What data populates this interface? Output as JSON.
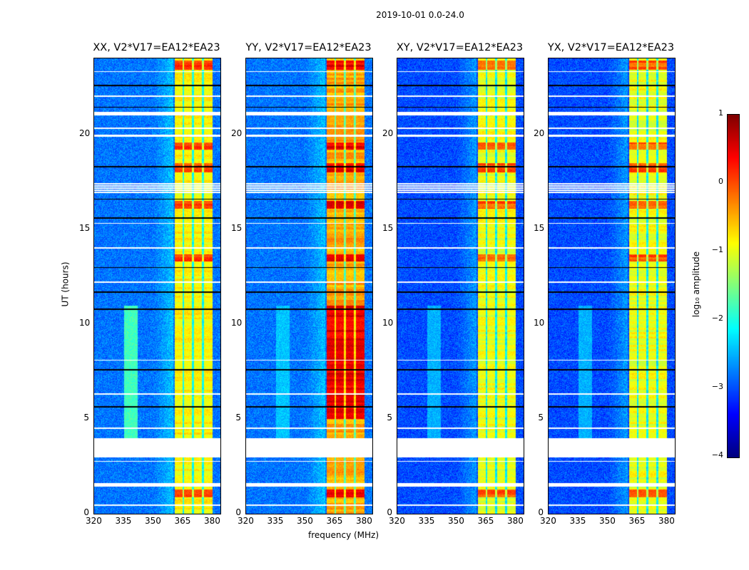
{
  "figure_title": "2019-10-01 0.0-24.0",
  "chart_data": {
    "type": "heatmap",
    "title": "2019-10-01 0.0-24.0",
    "xlabel": "frequency (MHz)",
    "ylabel": "UT (hours)",
    "xlim": [
      320,
      384
    ],
    "ylim": [
      0,
      24
    ],
    "xticks": [
      "320",
      "335",
      "350",
      "365",
      "380"
    ],
    "yticks": [
      "0",
      "5",
      "10",
      "15",
      "20"
    ],
    "panels": [
      {
        "title": "XX, V2*V17=EA12*EA23",
        "background_log_amp": -2.8,
        "band_log_amp": -1.0,
        "bump_log_amp": -2.0
      },
      {
        "title": "YY, V2*V17=EA12*EA23",
        "background_log_amp": -2.8,
        "band_log_amp": -0.6,
        "bump_log_amp": -2.6
      },
      {
        "title": "XY, V2*V17=EA12*EA23",
        "background_log_amp": -3.0,
        "band_log_amp": -1.1,
        "bump_log_amp": -2.7
      },
      {
        "title": "YX, V2*V17=EA12*EA23",
        "background_log_amp": -3.0,
        "band_log_amp": -1.1,
        "bump_log_amp": -2.7
      }
    ],
    "rfi_band_mhz": [
      360.5,
      380
    ],
    "rfi_gaps_mhz": [
      365,
      370,
      375
    ],
    "flagged_hours": [
      [
        0.45,
        0.52
      ],
      [
        1.45,
        1.62
      ],
      [
        2.75,
        2.8
      ],
      [
        3.0,
        4.0
      ],
      [
        4.5,
        4.55
      ],
      [
        6.3,
        6.36
      ],
      [
        8.1,
        8.15
      ],
      [
        12.2,
        12.26
      ],
      [
        14.0,
        14.05
      ],
      [
        15.3,
        15.36
      ],
      [
        16.9,
        17.5
      ],
      [
        19.9,
        20.0
      ],
      [
        20.3,
        20.36
      ],
      [
        21.0,
        21.2
      ],
      [
        22.0,
        22.05
      ],
      [
        23.3,
        23.36
      ]
    ],
    "bright_hours": [
      [
        0.9,
        1.3
      ],
      [
        13.3,
        13.7
      ],
      [
        16.1,
        16.5
      ],
      [
        18.0,
        18.5
      ],
      [
        19.2,
        19.6
      ],
      [
        23.4,
        23.9
      ]
    ],
    "colorbar": {
      "label": "log₁₀ amplitude",
      "range": [
        -4,
        1
      ],
      "ticks": [
        "1",
        "0",
        "−1",
        "−2",
        "−3",
        "−4"
      ],
      "colormap": "jet"
    }
  }
}
